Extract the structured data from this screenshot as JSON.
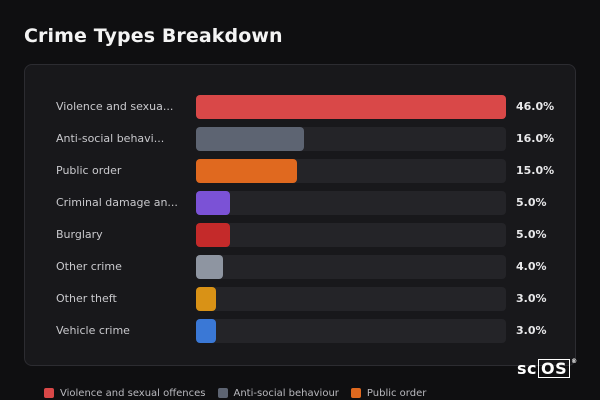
{
  "title": "Crime Types Breakdown",
  "chart_data": {
    "type": "bar",
    "orientation": "horizontal",
    "title": "Crime Types Breakdown",
    "categories": [
      "Violence and sexua...",
      "Anti-social behavi...",
      "Public order",
      "Criminal damage an...",
      "Burglary",
      "Other crime",
      "Other theft",
      "Vehicle crime"
    ],
    "values": [
      46.0,
      16.0,
      15.0,
      5.0,
      5.0,
      4.0,
      3.0,
      3.0
    ],
    "value_labels": [
      "46.0%",
      "16.0%",
      "15.0%",
      "5.0%",
      "5.0%",
      "4.0%",
      "3.0%",
      "3.0%"
    ],
    "colors": [
      "#d94848",
      "#5d6472",
      "#e0691f",
      "#7b52d6",
      "#c42a2a",
      "#8e95a1",
      "#d99216",
      "#3a78d6"
    ],
    "xlim": [
      0,
      46
    ],
    "grid": false,
    "legend_position": "bottom"
  },
  "legend": [
    {
      "label": "Violence and sexual offences",
      "color": "#d94848"
    },
    {
      "label": "Anti-social behaviour",
      "color": "#5d6472"
    },
    {
      "label": "Public order",
      "color": "#e0691f"
    }
  ],
  "logo": {
    "prefix": "sc",
    "boxed": "OS",
    "mark": "®"
  }
}
